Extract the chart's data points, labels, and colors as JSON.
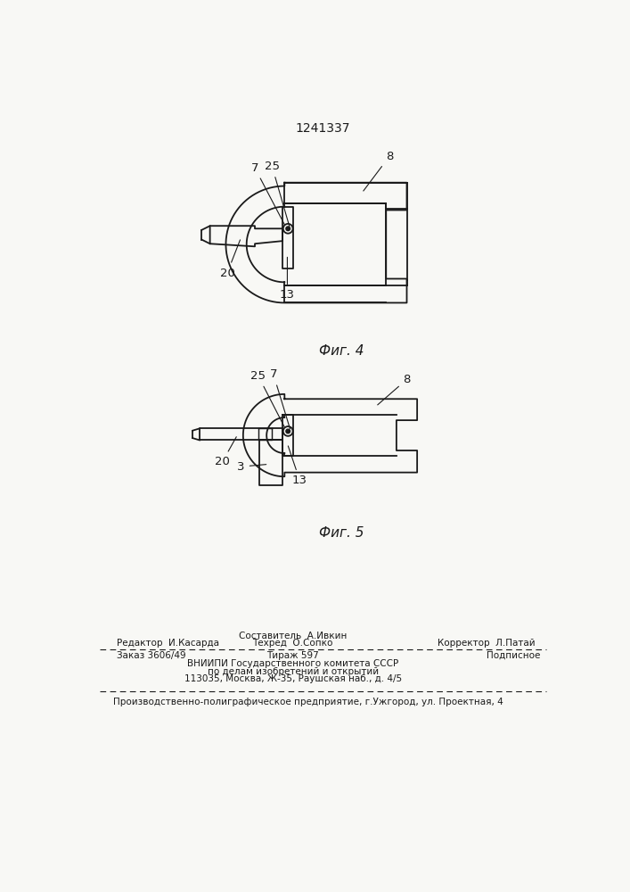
{
  "patent_number": "1241337",
  "bg_color": "#f8f8f5",
  "line_color": "#1a1a1a",
  "fig4_caption": "Фиг. 4",
  "fig5_caption": "Фиг. 5",
  "footer": {
    "line1_left": "Редактор  И.Касарда",
    "line1_center_top": "Составитель  А.Ивкин",
    "line1_center_bot": "Техред  О.Сопко",
    "line1_right": "Корректор  Л.Патай",
    "line2_col1": "Заказ 3606/49",
    "line2_col2": "Тираж 597",
    "line2_col3": "Подписное",
    "line3": "ВНИИПИ Государственного комитета СССР",
    "line4": "по делам изобретений и открытий",
    "line5": "113035, Москва, Ж-35, Раушская наб., д. 4/5",
    "line6": "Производственно-полиграфическое предприятие, г.Ужгород, ул. Проектная, 4"
  }
}
